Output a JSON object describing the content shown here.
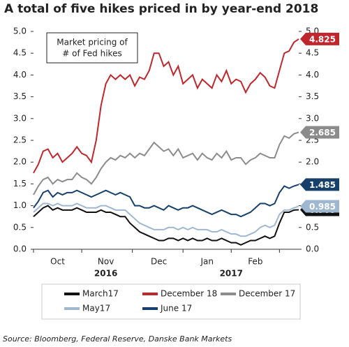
{
  "chart_data": {
    "type": "line",
    "title": "A total of five hikes priced in by year-end 2018",
    "annotation": [
      "Market pricing of",
      "# of Fed hikes"
    ],
    "source": "Source: Bloomberg, Federal Reserve, Danske Bank Markets",
    "categories": [
      null,
      null,
      null,
      null,
      null,
      "Oct",
      null,
      null,
      null,
      null,
      null,
      null,
      null,
      null,
      null,
      "Nov",
      null,
      null,
      null,
      null,
      null,
      null,
      null,
      null,
      null,
      null,
      "Dec",
      null,
      null,
      null,
      null,
      null,
      null,
      null,
      null,
      null,
      "Jan",
      null,
      null,
      null,
      null,
      null,
      null,
      null,
      null,
      null,
      "Feb",
      null,
      null,
      null,
      null,
      null,
      null,
      null,
      null,
      null
    ],
    "categories2": [
      null,
      null,
      null,
      null,
      null,
      null,
      null,
      null,
      null,
      null,
      null,
      null,
      null,
      null,
      null,
      "2016",
      null,
      null,
      null,
      null,
      null,
      null,
      null,
      null,
      null,
      null,
      null,
      null,
      null,
      null,
      null,
      null,
      null,
      null,
      null,
      null,
      null,
      null,
      null,
      null,
      null,
      "2017",
      null,
      null,
      null,
      null,
      null,
      null,
      null,
      null,
      null,
      null,
      null,
      null,
      null,
      null
    ],
    "ylim": [
      0,
      5
    ],
    "y2lim": [
      0,
      5
    ],
    "yticks": [
      {
        "value": 0,
        "label": "0.0"
      },
      {
        "value": 0.5,
        "label": "0.5"
      },
      {
        "value": 1,
        "label": "1.0"
      },
      {
        "value": 1.5,
        "label": "1.5"
      },
      {
        "value": 2,
        "label": "2.0"
      },
      {
        "value": 2.5,
        "label": "2.5"
      },
      {
        "value": 3,
        "label": "3.0"
      },
      {
        "value": 3.5,
        "label": "3.5"
      },
      {
        "value": 4,
        "label": "4.0"
      },
      {
        "value": 4.5,
        "label": "4.5"
      },
      {
        "value": 5,
        "label": "5.0"
      }
    ],
    "y2ticks": [
      {
        "value": 0,
        "label": "0.0"
      },
      {
        "value": 0.5,
        "label": "0.5"
      },
      {
        "value": 1,
        "label": "1.0"
      },
      {
        "value": 1.5,
        "label": "1.5"
      },
      {
        "value": 2,
        "label": "2.0"
      },
      {
        "value": 2.5,
        "label": "2.5"
      },
      {
        "value": 3,
        "label": "3.0"
      },
      {
        "value": 3.5,
        "label": "3.5"
      },
      {
        "value": 4,
        "label": "4.0"
      },
      {
        "value": 4.5,
        "label": "4.5"
      },
      {
        "value": 5,
        "label": "5.0"
      }
    ],
    "grid": false,
    "legend": "bottom",
    "series": [
      {
        "name": "March17",
        "color": "#111111",
        "values": [
          0.75,
          0.85,
          0.95,
          1.0,
          0.9,
          0.95,
          0.9,
          0.9,
          0.9,
          0.95,
          0.9,
          0.85,
          0.85,
          0.85,
          0.9,
          0.85,
          0.85,
          0.8,
          0.75,
          0.75,
          0.6,
          0.5,
          0.4,
          0.35,
          0.3,
          0.25,
          0.2,
          0.2,
          0.25,
          0.25,
          0.2,
          0.25,
          0.2,
          0.25,
          0.2,
          0.2,
          0.25,
          0.2,
          0.2,
          0.25,
          0.2,
          0.15,
          0.15,
          0.1,
          0.15,
          0.2,
          0.2,
          0.25,
          0.3,
          0.25,
          0.3,
          0.6,
          0.85,
          0.85,
          0.9,
          0.905
        ]
      },
      {
        "name": "December 18",
        "color": "#c0272d",
        "values": [
          1.75,
          1.95,
          2.25,
          2.3,
          2.1,
          2.2,
          2.0,
          2.1,
          2.2,
          2.35,
          2.2,
          2.15,
          2.0,
          2.5,
          3.3,
          3.8,
          4.0,
          3.9,
          4.0,
          3.9,
          4.0,
          3.75,
          3.95,
          3.9,
          4.1,
          4.5,
          4.5,
          4.2,
          4.3,
          4.0,
          4.2,
          3.8,
          3.9,
          4.0,
          3.7,
          3.9,
          3.8,
          3.7,
          4.0,
          3.85,
          4.1,
          3.8,
          3.9,
          3.85,
          3.6,
          3.8,
          3.9,
          4.05,
          3.95,
          3.75,
          3.7,
          4.1,
          4.5,
          4.55,
          4.75,
          4.825
        ]
      },
      {
        "name": "December 17",
        "color": "#8c8c8c",
        "values": [
          1.25,
          1.45,
          1.6,
          1.65,
          1.5,
          1.6,
          1.55,
          1.6,
          1.6,
          1.75,
          1.65,
          1.6,
          1.5,
          1.65,
          1.85,
          2.0,
          2.1,
          2.05,
          2.15,
          2.1,
          2.2,
          2.1,
          2.2,
          2.15,
          2.3,
          2.45,
          2.35,
          2.25,
          2.3,
          2.15,
          2.3,
          2.1,
          2.15,
          2.2,
          2.05,
          2.2,
          2.1,
          2.05,
          2.2,
          2.1,
          2.25,
          2.05,
          2.1,
          2.1,
          1.95,
          2.05,
          2.1,
          2.2,
          2.15,
          2.1,
          2.1,
          2.4,
          2.6,
          2.55,
          2.65,
          2.685
        ]
      },
      {
        "name": "May17",
        "color": "#9fb8d0",
        "values": [
          0.85,
          0.95,
          1.05,
          1.05,
          1.0,
          1.05,
          1.0,
          1.0,
          1.0,
          1.05,
          1.0,
          0.95,
          0.95,
          0.95,
          1.0,
          1.0,
          0.95,
          0.9,
          0.9,
          0.9,
          0.8,
          0.7,
          0.6,
          0.55,
          0.5,
          0.45,
          0.45,
          0.45,
          0.5,
          0.5,
          0.45,
          0.5,
          0.45,
          0.5,
          0.45,
          0.45,
          0.45,
          0.4,
          0.4,
          0.45,
          0.4,
          0.35,
          0.35,
          0.3,
          0.3,
          0.35,
          0.4,
          0.5,
          0.55,
          0.5,
          0.55,
          0.8,
          0.9,
          0.9,
          0.95,
          0.985
        ]
      },
      {
        "name": "June 17",
        "color": "#17406b",
        "values": [
          0.95,
          1.1,
          1.3,
          1.35,
          1.2,
          1.3,
          1.25,
          1.3,
          1.3,
          1.35,
          1.3,
          1.25,
          1.2,
          1.25,
          1.3,
          1.35,
          1.3,
          1.25,
          1.3,
          1.25,
          1.2,
          1.0,
          1.0,
          0.95,
          0.95,
          1.0,
          0.95,
          0.9,
          1.0,
          0.95,
          0.9,
          0.95,
          0.95,
          1.0,
          0.95,
          0.9,
          0.85,
          0.8,
          0.85,
          0.9,
          0.85,
          0.8,
          0.8,
          0.75,
          0.8,
          0.85,
          0.95,
          1.05,
          1.05,
          1.0,
          1.05,
          1.3,
          1.45,
          1.4,
          1.45,
          1.485
        ]
      }
    ]
  }
}
